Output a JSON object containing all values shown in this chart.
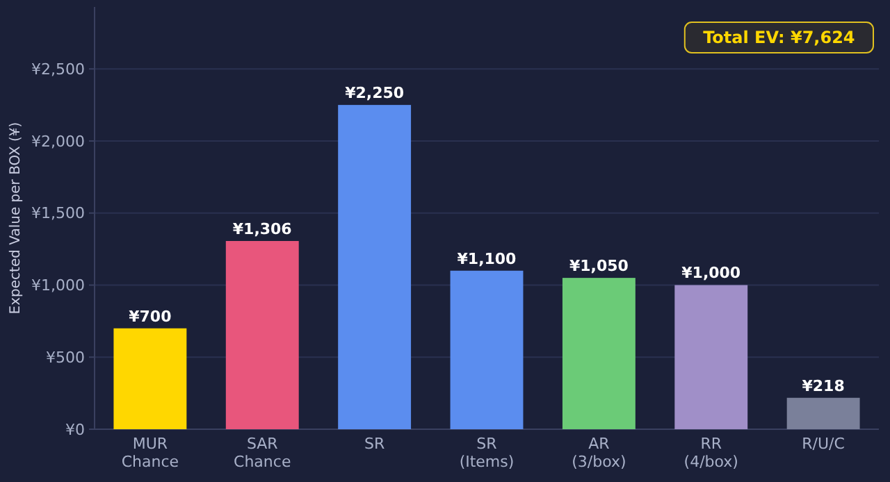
{
  "chart_data": {
    "type": "bar",
    "ylabel": "Expected Value per BOX (¥)",
    "categories": [
      "MUR\nChance",
      "SAR\nChance",
      "SR",
      "SR\n(Items)",
      "AR\n(3/box)",
      "RR\n(4/box)",
      "R/U/C"
    ],
    "values": [
      700,
      1306,
      2250,
      1100,
      1050,
      1000,
      218
    ],
    "colors": [
      "#ffd700",
      "#e8567c",
      "#5b8def",
      "#5b8def",
      "#6bcb77",
      "#a08fc8",
      "#7a809a"
    ],
    "value_labels": [
      "¥700",
      "¥1,306",
      "¥2,250",
      "¥1,100",
      "¥1,050",
      "¥1,000",
      "¥218"
    ],
    "ylim": [
      0,
      2930
    ],
    "yticks": [
      {
        "value": 0,
        "label": "¥0"
      },
      {
        "value": 500,
        "label": "¥500"
      },
      {
        "value": 1000,
        "label": "¥1,000"
      },
      {
        "value": 1500,
        "label": "¥1,500"
      },
      {
        "value": 2000,
        "label": "¥2,000"
      },
      {
        "value": 2500,
        "label": "¥2,500"
      }
    ],
    "grid": "y",
    "annotations": [
      "Total EV: ¥7,624"
    ]
  }
}
